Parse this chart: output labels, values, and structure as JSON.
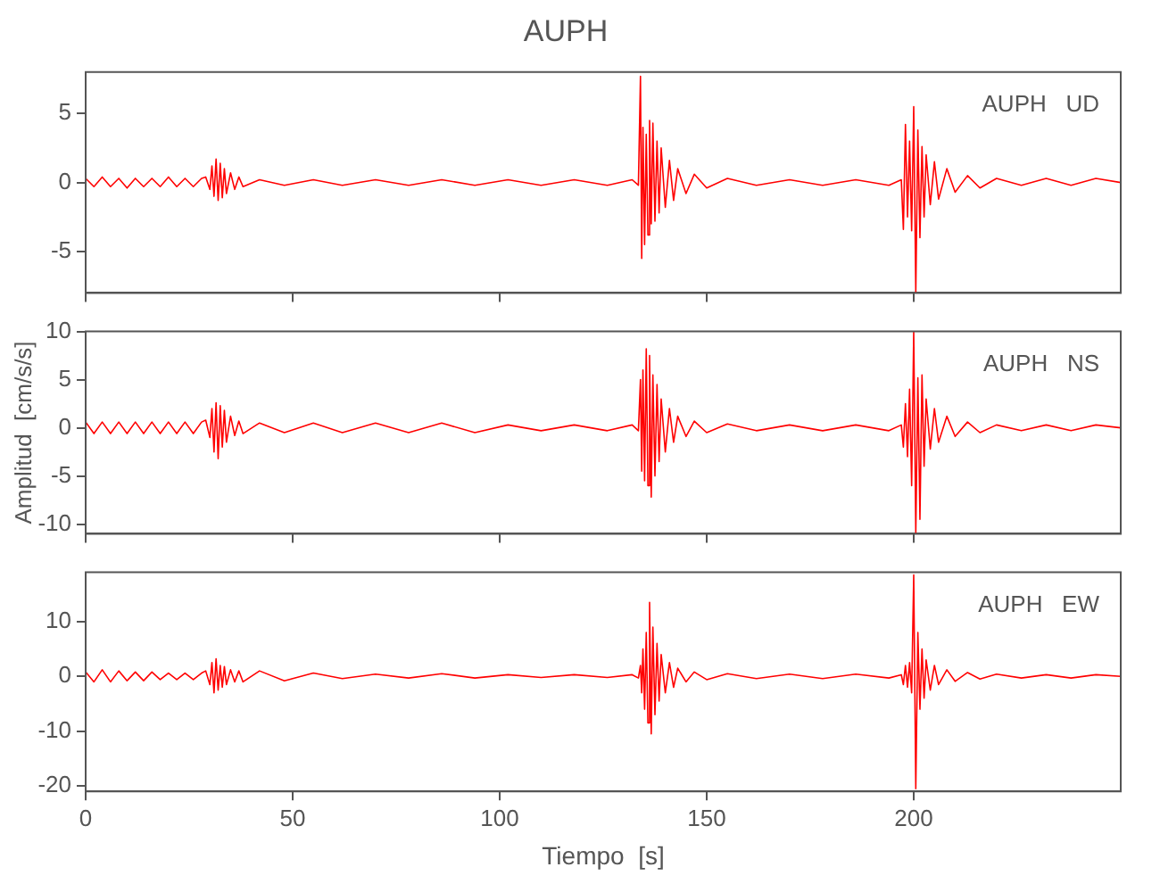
{
  "chart_data": [
    {
      "type": "line",
      "title": "AUPH",
      "annotations": [
        "AUPH   UD"
      ],
      "xlim": [
        0,
        250
      ],
      "xticks": [
        0,
        50,
        100,
        150,
        200
      ],
      "ylim": [
        -8,
        8
      ],
      "yticks": [
        -5,
        0,
        5
      ],
      "tick_labels": "y",
      "marker": "none",
      "grid": false,
      "x": [
        0,
        2,
        4,
        6,
        8,
        10,
        12,
        14,
        16,
        18,
        20,
        22,
        24,
        26,
        28,
        29,
        30,
        30.5,
        31,
        31.5,
        32,
        32.5,
        33,
        33.5,
        34,
        35,
        36,
        37,
        38,
        42,
        48,
        55,
        62,
        70,
        78,
        86,
        94,
        102,
        110,
        118,
        126,
        132,
        133.5,
        134,
        134.3,
        134.6,
        135,
        135.4,
        135.8,
        136.2,
        136.6,
        137,
        137.5,
        138,
        138.5,
        139,
        140,
        141,
        142,
        143,
        145,
        147,
        150,
        155,
        162,
        170,
        178,
        186,
        194,
        197,
        197.5,
        198,
        198.5,
        199,
        199.5,
        200,
        200.5,
        201,
        201.5,
        202,
        202.5,
        203,
        204,
        205,
        206,
        208,
        210,
        213,
        216,
        220,
        226,
        232,
        238,
        244,
        250
      ],
      "series": [
        {
          "color": "#ff0000",
          "values": [
            0.3,
            -0.3,
            0.4,
            -0.3,
            0.3,
            -0.4,
            0.3,
            -0.3,
            0.3,
            -0.3,
            0.4,
            -0.3,
            0.3,
            -0.3,
            0.3,
            0.4,
            -0.5,
            1.2,
            -1.0,
            1.7,
            -1.3,
            1.4,
            -1.1,
            1.0,
            -0.8,
            0.7,
            -0.5,
            0.4,
            -0.3,
            0.2,
            -0.2,
            0.2,
            -0.2,
            0.2,
            -0.2,
            0.2,
            -0.2,
            0.2,
            -0.2,
            0.2,
            -0.2,
            0.2,
            -0.2,
            7.7,
            -5.5,
            4.0,
            -4.5,
            3.5,
            -3.8,
            4.5,
            -3.0,
            4.3,
            -2.8,
            3.0,
            -2.2,
            2.5,
            -1.8,
            1.6,
            -1.3,
            1.0,
            -0.8,
            0.6,
            -0.4,
            0.3,
            -0.2,
            0.2,
            -0.2,
            0.2,
            -0.2,
            0.2,
            -3.4,
            4.2,
            -2.5,
            3.0,
            -3.5,
            5.5,
            -8,
            3.8,
            -4.0,
            2.6,
            -2.5,
            2.0,
            -1.6,
            1.5,
            -1.2,
            1.0,
            -0.7,
            0.5,
            -0.4,
            0.3,
            -0.2,
            0.3,
            -0.2,
            0.3,
            0
          ]
        }
      ]
    },
    {
      "type": "line",
      "ylabel": "Amplitud  [cm/s/s]",
      "annotations": [
        "AUPH   NS"
      ],
      "xlim": [
        0,
        250
      ],
      "xticks": [
        0,
        50,
        100,
        150,
        200
      ],
      "ylim": [
        -11,
        10
      ],
      "yticks": [
        -10,
        -5,
        0,
        5,
        10
      ],
      "tick_labels": "y",
      "marker": "none",
      "grid": false,
      "x": [
        0,
        2,
        4,
        6,
        8,
        10,
        12,
        14,
        16,
        18,
        20,
        22,
        24,
        26,
        28,
        29,
        30,
        30.5,
        31,
        31.5,
        32,
        32.5,
        33,
        33.5,
        34,
        35,
        36,
        37,
        38,
        42,
        48,
        55,
        62,
        70,
        78,
        86,
        94,
        102,
        110,
        118,
        126,
        132,
        133.5,
        134,
        134.3,
        134.6,
        135,
        135.4,
        135.8,
        136.2,
        136.6,
        137,
        137.5,
        138,
        138.5,
        139,
        140,
        141,
        142,
        143,
        145,
        147,
        150,
        155,
        162,
        170,
        178,
        186,
        194,
        197,
        197.5,
        198,
        198.5,
        199,
        199.5,
        200,
        200.5,
        201,
        201.5,
        202,
        202.5,
        203,
        204,
        205,
        206,
        208,
        210,
        213,
        216,
        220,
        226,
        232,
        238,
        244,
        250
      ],
      "series": [
        {
          "color": "#ff0000",
          "values": [
            0.6,
            -0.6,
            0.6,
            -0.6,
            0.6,
            -0.6,
            0.6,
            -0.6,
            0.6,
            -0.6,
            0.6,
            -0.6,
            0.6,
            -0.6,
            0.6,
            0.8,
            -1.0,
            2.0,
            -2.5,
            2.6,
            -3.2,
            2.3,
            -2.0,
            1.8,
            -1.5,
            1.2,
            -0.8,
            0.7,
            -0.6,
            0.5,
            -0.5,
            0.5,
            -0.5,
            0.5,
            -0.5,
            0.5,
            -0.5,
            0.3,
            -0.3,
            0.3,
            -0.3,
            0.3,
            -0.3,
            5.0,
            -4.5,
            6.0,
            -5.5,
            8.2,
            -6.0,
            7.5,
            -7.2,
            5.5,
            -5.0,
            4.5,
            -3.5,
            3.0,
            -2.5,
            2.0,
            -1.5,
            1.2,
            -0.9,
            0.7,
            -0.5,
            0.4,
            -0.3,
            0.3,
            -0.3,
            0.3,
            -0.3,
            0.3,
            -2.0,
            2.5,
            -3.0,
            4.0,
            -6.0,
            10,
            -11,
            5.2,
            -9.5,
            5.5,
            -4.0,
            3.0,
            -2.2,
            2.0,
            -1.5,
            1.2,
            -0.9,
            0.6,
            -0.5,
            0.3,
            -0.3,
            0.3,
            -0.3,
            0.3,
            0
          ]
        }
      ]
    },
    {
      "type": "line",
      "xlabel": "Tiempo  [s]",
      "annotations": [
        "AUPH   EW"
      ],
      "xlim": [
        0,
        250
      ],
      "xticks": [
        0,
        50,
        100,
        150,
        200
      ],
      "ylim": [
        -21,
        19
      ],
      "yticks": [
        -20,
        -10,
        0,
        10
      ],
      "marker": "none",
      "grid": false,
      "x": [
        0,
        2,
        4,
        6,
        8,
        10,
        12,
        14,
        16,
        18,
        20,
        22,
        24,
        26,
        28,
        29,
        30,
        30.5,
        31,
        31.5,
        32,
        32.5,
        33,
        33.5,
        34,
        35,
        36,
        37,
        38,
        42,
        48,
        55,
        62,
        70,
        78,
        86,
        94,
        102,
        110,
        118,
        126,
        132,
        133.5,
        134,
        134.3,
        134.6,
        135,
        135.4,
        135.8,
        136.2,
        136.6,
        137,
        137.5,
        138,
        138.5,
        139,
        140,
        141,
        142,
        143,
        145,
        147,
        150,
        155,
        162,
        170,
        178,
        186,
        194,
        197,
        197.5,
        198,
        198.5,
        199,
        199.5,
        200,
        200.5,
        201,
        201.5,
        202,
        202.5,
        203,
        204,
        205,
        206,
        208,
        210,
        213,
        216,
        220,
        226,
        232,
        238,
        244,
        250
      ],
      "series": [
        {
          "color": "#ff0000",
          "values": [
            0.8,
            -1.0,
            1.2,
            -1.0,
            1.0,
            -0.8,
            0.8,
            -0.8,
            0.8,
            -0.6,
            0.6,
            -0.6,
            0.6,
            -0.6,
            0.6,
            1.0,
            -1.5,
            2.5,
            -3.0,
            3.2,
            -2.5,
            2.0,
            -2.0,
            1.8,
            -1.5,
            1.2,
            -1.0,
            1.0,
            -1.0,
            1.0,
            -0.8,
            0.6,
            -0.4,
            0.4,
            -0.3,
            0.5,
            -0.3,
            0.3,
            -0.2,
            0.3,
            -0.2,
            0.3,
            -0.3,
            2.0,
            -3.0,
            5.0,
            -6.0,
            8.0,
            -8.5,
            13.5,
            -10.5,
            9.0,
            -7.0,
            6.0,
            -4.5,
            4.0,
            -3.0,
            2.5,
            -2.0,
            1.5,
            -1.0,
            0.8,
            -0.6,
            0.5,
            -0.4,
            0.4,
            -0.4,
            0.4,
            -0.3,
            0.3,
            -1.5,
            2.0,
            -2.0,
            2.5,
            -3.0,
            18.5,
            -20.5,
            8.0,
            -6.0,
            5.0,
            -4.0,
            3.0,
            -2.5,
            2.0,
            -1.5,
            1.2,
            -0.9,
            0.7,
            -0.5,
            0.4,
            -0.3,
            0.3,
            -0.3,
            0.3,
            0
          ]
        }
      ]
    }
  ]
}
